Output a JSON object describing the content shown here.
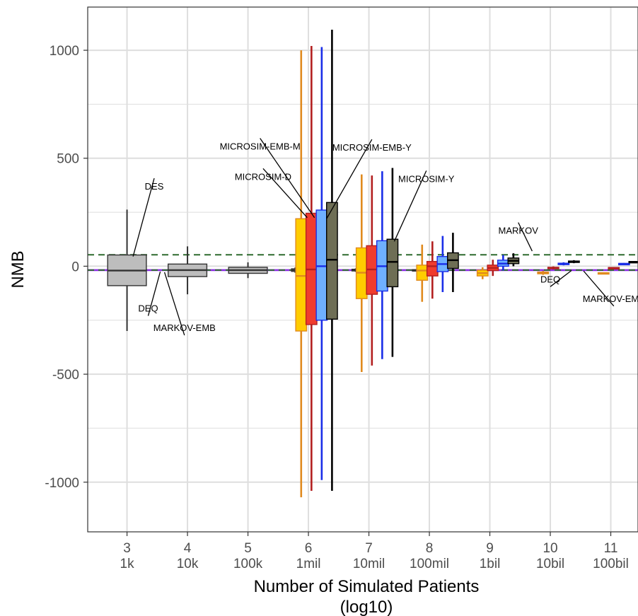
{
  "colors": {
    "gridline": "#dedede",
    "panel_border": "#333333",
    "dashed_green": "#2e6b2e",
    "purple": "#8a2be2",
    "DES": "#bdbdbd",
    "MICROSIM-D": "#ffcc00",
    "MICROSIM-D_whisker": "#e08a1e",
    "MICROSIM-EMB-M": "#f03c2e",
    "MICROSIM-EMB-M_whisker": "#b32020",
    "MICROSIM-EMB-Y": "#6fb0ff",
    "MICROSIM-EMB-Y_whisker": "#1a2ee8",
    "MICROSIM-Y": "#6e6e55",
    "MICROSIM-Y_whisker": "#000000"
  },
  "chart_data": {
    "type": "box",
    "title": "",
    "xlabel_line1": "Number of Simulated Patients",
    "xlabel_line2": "(log10)",
    "ylabel": "NMB",
    "ylim": [
      -1230,
      1200
    ],
    "xlim": [
      2.35,
      11.45
    ],
    "y_ticks": [
      {
        "value": 1000,
        "label": "1000"
      },
      {
        "value": 500,
        "label": "500"
      },
      {
        "value": 0,
        "label": "0"
      },
      {
        "value": -500,
        "label": "-500"
      },
      {
        "value": -1000,
        "label": "-1000"
      }
    ],
    "x_ticks": [
      {
        "value": 3,
        "label": "3",
        "sublabel": "1k"
      },
      {
        "value": 4,
        "label": "4",
        "sublabel": "10k"
      },
      {
        "value": 5,
        "label": "5",
        "sublabel": "100k"
      },
      {
        "value": 6,
        "label": "6",
        "sublabel": "1mil"
      },
      {
        "value": 7,
        "label": "7",
        "sublabel": "10mil"
      },
      {
        "value": 8,
        "label": "8",
        "sublabel": "100mil"
      },
      {
        "value": 9,
        "label": "9",
        "sublabel": "1bil"
      },
      {
        "value": 10,
        "label": "10",
        "sublabel": "10bil"
      },
      {
        "value": 11,
        "label": "11",
        "sublabel": "100bil"
      }
    ],
    "hlines": [
      {
        "name": "MARKOV",
        "y": 53,
        "style": "dashed",
        "color_key": "dashed_green"
      },
      {
        "name": "DEQ",
        "y": -18,
        "style": "solid",
        "color_key": "purple"
      },
      {
        "name": "MARKOV-EMB",
        "y": -18,
        "style": "dashed",
        "color_key": "dashed_green"
      }
    ],
    "boxes": [
      {
        "series": "DES",
        "x": 3.0,
        "half_width": 0.32,
        "min": -300,
        "q1": -90,
        "median": -20,
        "q3": 52,
        "max": 262
      },
      {
        "series": "DES",
        "x": 4.0,
        "half_width": 0.32,
        "min": -130,
        "q1": -48,
        "median": -18,
        "q3": 10,
        "max": 92
      },
      {
        "series": "DES",
        "x": 5.0,
        "half_width": 0.32,
        "min": -55,
        "q1": -33,
        "median": -18,
        "q3": -5,
        "max": 18
      },
      {
        "series": "DES",
        "x": 5.78,
        "half_width": 0.06,
        "min": -30,
        "q1": -24,
        "median": -18,
        "q3": -12,
        "max": -6
      },
      {
        "series": "MICROSIM-D",
        "x": 5.88,
        "half_width": 0.09,
        "min": -1070,
        "q1": -300,
        "median": -45,
        "q3": 220,
        "max": 1000
      },
      {
        "series": "MICROSIM-EMB-M",
        "x": 6.05,
        "half_width": 0.09,
        "min": -1040,
        "q1": -270,
        "median": -15,
        "q3": 245,
        "max": 1020
      },
      {
        "series": "MICROSIM-EMB-Y",
        "x": 6.22,
        "half_width": 0.09,
        "min": -990,
        "q1": -250,
        "median": 0,
        "q3": 260,
        "max": 1015
      },
      {
        "series": "MICROSIM-Y",
        "x": 6.39,
        "half_width": 0.09,
        "min": -1040,
        "q1": -245,
        "median": 30,
        "q3": 295,
        "max": 1095
      },
      {
        "series": "DES",
        "x": 6.78,
        "half_width": 0.06,
        "min": -26,
        "q1": -22,
        "median": -18,
        "q3": -14,
        "max": -10
      },
      {
        "series": "MICROSIM-D",
        "x": 6.88,
        "half_width": 0.09,
        "min": -490,
        "q1": -150,
        "median": -30,
        "q3": 85,
        "max": 425
      },
      {
        "series": "MICROSIM-EMB-M",
        "x": 7.05,
        "half_width": 0.09,
        "min": -460,
        "q1": -130,
        "median": -15,
        "q3": 95,
        "max": 420
      },
      {
        "series": "MICROSIM-EMB-Y",
        "x": 7.22,
        "half_width": 0.09,
        "min": -430,
        "q1": -115,
        "median": 0,
        "q3": 118,
        "max": 440
      },
      {
        "series": "MICROSIM-Y",
        "x": 7.39,
        "half_width": 0.09,
        "min": -420,
        "q1": -95,
        "median": 20,
        "q3": 125,
        "max": 455
      },
      {
        "series": "DES",
        "x": 7.78,
        "half_width": 0.06,
        "min": -22,
        "q1": -20,
        "median": -18,
        "q3": -16,
        "max": -14
      },
      {
        "series": "MICROSIM-D",
        "x": 7.88,
        "half_width": 0.09,
        "min": -165,
        "q1": -65,
        "median": -20,
        "q3": 5,
        "max": 100
      },
      {
        "series": "MICROSIM-EMB-M",
        "x": 8.05,
        "half_width": 0.09,
        "min": -150,
        "q1": -45,
        "median": 0,
        "q3": 22,
        "max": 115
      },
      {
        "series": "MICROSIM-EMB-Y",
        "x": 8.22,
        "half_width": 0.09,
        "min": -120,
        "q1": -25,
        "median": 10,
        "q3": 45,
        "max": 140
      },
      {
        "series": "MICROSIM-Y",
        "x": 8.39,
        "half_width": 0.09,
        "min": -120,
        "q1": -10,
        "median": 28,
        "q3": 62,
        "max": 155
      },
      {
        "series": "MICROSIM-D",
        "x": 8.88,
        "half_width": 0.09,
        "min": -60,
        "q1": -45,
        "median": -32,
        "q3": -18,
        "max": -5
      },
      {
        "series": "MICROSIM-EMB-M",
        "x": 9.05,
        "half_width": 0.09,
        "min": -45,
        "q1": -20,
        "median": -8,
        "q3": 5,
        "max": 30
      },
      {
        "series": "MICROSIM-EMB-Y",
        "x": 9.22,
        "half_width": 0.09,
        "min": -20,
        "q1": 0,
        "median": 12,
        "q3": 28,
        "max": 52
      },
      {
        "series": "MICROSIM-Y",
        "x": 9.39,
        "half_width": 0.09,
        "min": 0,
        "q1": 12,
        "median": 25,
        "q3": 38,
        "max": 60
      },
      {
        "series": "MICROSIM-D",
        "x": 9.88,
        "half_width": 0.09,
        "min": -40,
        "q1": -35,
        "median": -31,
        "q3": -27,
        "max": -22
      },
      {
        "series": "MICROSIM-EMB-M",
        "x": 10.05,
        "half_width": 0.09,
        "min": -15,
        "q1": -11,
        "median": -8,
        "q3": -5,
        "max": -1
      },
      {
        "series": "MICROSIM-EMB-Y",
        "x": 10.22,
        "half_width": 0.09,
        "min": 4,
        "q1": 8,
        "median": 11,
        "q3": 14,
        "max": 18
      },
      {
        "series": "MICROSIM-Y",
        "x": 10.39,
        "half_width": 0.09,
        "min": 14,
        "q1": 18,
        "median": 21,
        "q3": 24,
        "max": 28
      },
      {
        "series": "MICROSIM-D",
        "x": 10.88,
        "half_width": 0.09,
        "min": -36,
        "q1": -34,
        "median": -32,
        "q3": -30,
        "max": -28
      },
      {
        "series": "MICROSIM-EMB-M",
        "x": 11.05,
        "half_width": 0.09,
        "min": -12,
        "q1": -10,
        "median": -8,
        "q3": -6,
        "max": -4
      },
      {
        "series": "MICROSIM-EMB-Y",
        "x": 11.22,
        "half_width": 0.09,
        "min": 7,
        "q1": 9,
        "median": 11,
        "q3": 13,
        "max": 15
      },
      {
        "series": "MICROSIM-Y",
        "x": 11.39,
        "half_width": 0.09,
        "min": 16,
        "q1": 18,
        "median": 20,
        "q3": 22,
        "max": 24
      }
    ],
    "annotations": [
      {
        "text": "DES",
        "tx": 3.45,
        "ty": 355,
        "ax": 3.1,
        "ay": 45,
        "anchor": "middle"
      },
      {
        "text": "DEQ",
        "tx": 3.35,
        "ty": -210,
        "ax": 3.55,
        "ay": -25,
        "anchor": "middle"
      },
      {
        "text": "MARKOV-EMB",
        "tx": 3.95,
        "ty": -300,
        "ax": 3.62,
        "ay": -28,
        "anchor": "middle"
      },
      {
        "text": "MICROSIM-EMB-M",
        "tx": 5.2,
        "ty": 540,
        "ax": 6.1,
        "ay": 225,
        "anchor": "middle"
      },
      {
        "text": "MICROSIM-D",
        "tx": 5.25,
        "ty": 400,
        "ax": 5.98,
        "ay": 225,
        "anchor": "middle"
      },
      {
        "text": "MICROSIM-EMB-Y",
        "tx": 7.05,
        "ty": 535,
        "ax": 6.3,
        "ay": 220,
        "anchor": "middle"
      },
      {
        "text": "MICROSIM-Y",
        "tx": 7.95,
        "ty": 390,
        "ax": 7.42,
        "ay": 115,
        "anchor": "middle"
      },
      {
        "text": "MARKOV",
        "tx": 9.47,
        "ty": 150,
        "ax": 9.7,
        "ay": 70,
        "anchor": "middle"
      },
      {
        "text": "DEQ",
        "tx": 10.0,
        "ty": -75,
        "ax": 10.35,
        "ay": -20,
        "anchor": "middle"
      },
      {
        "text": "MARKOV-EMB",
        "tx": 11.05,
        "ty": -165,
        "ax": 10.55,
        "ay": -22,
        "anchor": "middle"
      }
    ]
  }
}
